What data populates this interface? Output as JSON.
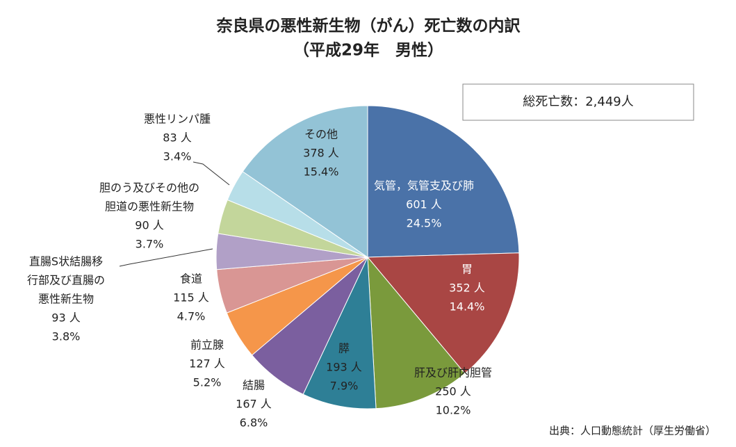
{
  "chart_data": {
    "type": "pie",
    "title": "奈良県の悪性新生物（がん）死亡数の内訳",
    "subtitle": "（平成29年　男性）",
    "total_text": "総死亡数：2,449人",
    "source": "出典：人口動態統計（厚生労働省）",
    "categories": [
      [
        "気管，気管支及び肺"
      ],
      [
        "胃"
      ],
      [
        "肝及び肝内胆管"
      ],
      [
        "膵"
      ],
      [
        "結腸"
      ],
      [
        "前立腺"
      ],
      [
        "食道"
      ],
      [
        "直腸S状結腸移",
        "行部及び直腸の",
        "悪性新生物"
      ],
      [
        "胆のう及びその他の",
        "胆道の悪性新生物"
      ],
      [
        "悪性リンパ腫"
      ],
      [
        "その他"
      ]
    ],
    "values": [
      601,
      352,
      250,
      193,
      167,
      127,
      115,
      93,
      90,
      83,
      378
    ],
    "value_labels": [
      "601 人",
      "352 人",
      "250 人",
      "193 人",
      "167 人",
      "127 人",
      "115 人",
      "93 人",
      "90 人",
      "83 人",
      "378 人"
    ],
    "percents": [
      24.5,
      14.4,
      10.2,
      7.9,
      6.8,
      5.2,
      4.7,
      3.8,
      3.7,
      3.4,
      15.4
    ],
    "percent_labels": [
      "24.5%",
      "14.4%",
      "10.2%",
      "7.9%",
      "6.8%",
      "5.2%",
      "4.7%",
      "3.8%",
      "3.7%",
      "3.4%",
      "15.4%"
    ],
    "colors": [
      "#4a72a8",
      "#a94644",
      "#7a9a3c",
      "#2e7f96",
      "#7b5f9f",
      "#f5964a",
      "#d99694",
      "#b1a0c7",
      "#c3d69b",
      "#b7dee8",
      "#93c3d6"
    ]
  }
}
